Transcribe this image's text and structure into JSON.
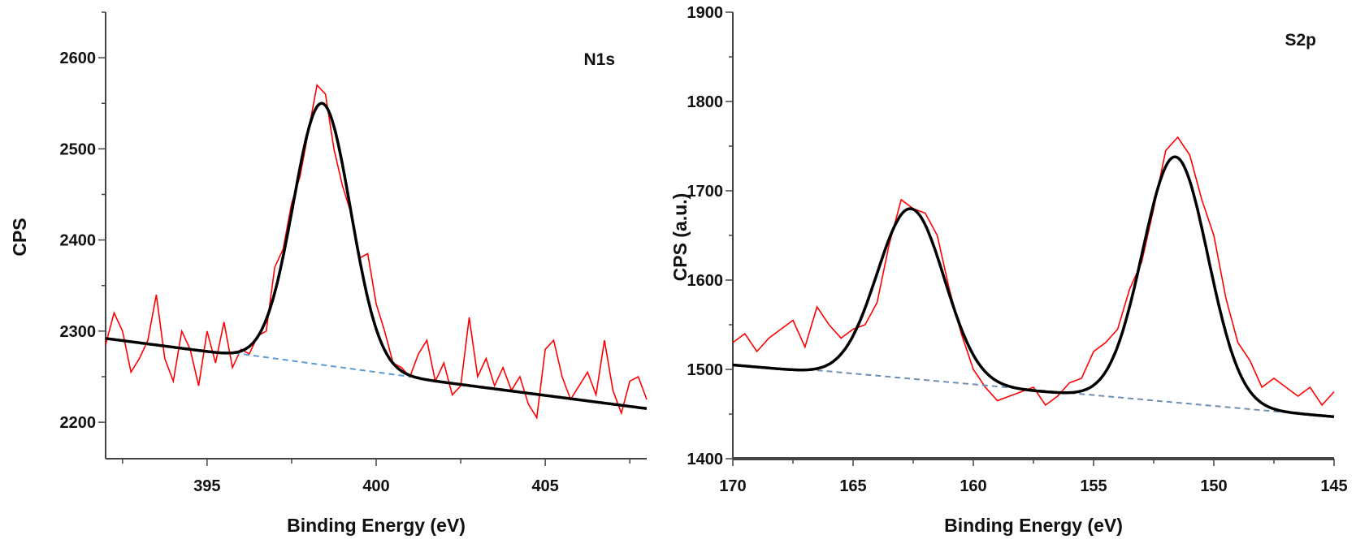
{
  "chart_data": [
    {
      "type": "line",
      "panel_label": "N1s",
      "xlabel": "Binding Energy (eV)",
      "ylabel": "CPS",
      "xlim": [
        392,
        408
      ],
      "ylim": [
        2160,
        2650
      ],
      "x_reversed": false,
      "xticks": [
        395,
        400,
        405
      ],
      "yticks": [
        2200,
        2300,
        2400,
        2500,
        2600
      ],
      "grid": false,
      "colors": {
        "raw": "#ff0000",
        "fit": "#000000",
        "background": "#5b9bd5"
      },
      "raw": {
        "x": [
          392,
          392.25,
          392.5,
          392.75,
          393,
          393.25,
          393.5,
          393.75,
          394,
          394.25,
          394.5,
          394.75,
          395,
          395.25,
          395.5,
          395.75,
          396,
          396.25,
          396.5,
          396.75,
          397,
          397.25,
          397.5,
          397.75,
          398,
          398.25,
          398.5,
          398.75,
          399,
          399.25,
          399.5,
          399.75,
          400,
          400.25,
          400.5,
          400.75,
          401,
          401.25,
          401.5,
          401.75,
          402,
          402.25,
          402.5,
          402.75,
          403,
          403.25,
          403.5,
          403.75,
          404,
          404.25,
          404.5,
          404.75,
          405,
          405.25,
          405.5,
          405.75,
          406,
          406.25,
          406.5,
          406.75,
          407,
          407.25,
          407.5,
          407.75,
          408
        ],
        "y": [
          2285,
          2320,
          2300,
          2255,
          2270,
          2290,
          2340,
          2270,
          2245,
          2300,
          2280,
          2240,
          2300,
          2265,
          2310,
          2260,
          2280,
          2275,
          2295,
          2300,
          2370,
          2390,
          2440,
          2470,
          2520,
          2570,
          2560,
          2500,
          2460,
          2430,
          2380,
          2385,
          2330,
          2300,
          2265,
          2260,
          2250,
          2275,
          2290,
          2245,
          2265,
          2230,
          2240,
          2315,
          2250,
          2270,
          2240,
          2260,
          2235,
          2250,
          2220,
          2205,
          2280,
          2290,
          2250,
          2225,
          2240,
          2255,
          2230,
          2290,
          2235,
          2210,
          2245,
          2250,
          2225
        ]
      },
      "fit": {
        "baseline": [
          [
            392,
            2292
          ],
          [
            408,
            2215
          ]
        ],
        "peaks": [
          {
            "center": 398.4,
            "peak_cps": 2550,
            "fwhm": 2.0
          }
        ]
      },
      "background": [
        [
          395.8,
          2276
        ],
        [
          401.0,
          2250
        ]
      ]
    },
    {
      "type": "line",
      "panel_label": "S2p",
      "xlabel": "Binding Energy (eV)",
      "ylabel": "CPS (a.u.)",
      "xlim": [
        170,
        145
      ],
      "ylim": [
        1400,
        1900
      ],
      "x_reversed": true,
      "xticks": [
        170,
        165,
        160,
        155,
        150,
        145
      ],
      "yticks": [
        1400,
        1500,
        1600,
        1700,
        1800,
        1900
      ],
      "grid": false,
      "colors": {
        "raw": "#ff0000",
        "fit": "#000000",
        "background": "#6f8fb0"
      },
      "raw": {
        "x": [
          170,
          169.5,
          169,
          168.5,
          168,
          167.5,
          167,
          166.5,
          166,
          165.5,
          165,
          164.5,
          164,
          163.5,
          163,
          162.5,
          162,
          161.5,
          161,
          160.5,
          160,
          159.5,
          159,
          158.5,
          158,
          157.5,
          157,
          156.5,
          156,
          155.5,
          155,
          154.5,
          154,
          153.5,
          153,
          152.5,
          152,
          151.5,
          151,
          150.5,
          150,
          149.5,
          149,
          148.5,
          148,
          147.5,
          147,
          146.5,
          146,
          145.5,
          145
        ],
        "y": [
          1530,
          1540,
          1520,
          1535,
          1545,
          1555,
          1525,
          1570,
          1550,
          1535,
          1545,
          1550,
          1575,
          1640,
          1690,
          1680,
          1675,
          1650,
          1590,
          1540,
          1500,
          1480,
          1465,
          1470,
          1475,
          1480,
          1460,
          1470,
          1485,
          1490,
          1520,
          1530,
          1545,
          1590,
          1620,
          1680,
          1745,
          1760,
          1740,
          1690,
          1650,
          1580,
          1530,
          1510,
          1480,
          1490,
          1480,
          1470,
          1480,
          1460,
          1475
        ]
      },
      "fit": {
        "baseline": [
          [
            170,
            1505
          ],
          [
            145,
            1447
          ]
        ],
        "peaks": [
          {
            "center": 162.6,
            "peak_cps": 1680,
            "fwhm": 3.3
          },
          {
            "center": 151.6,
            "peak_cps": 1738,
            "fwhm": 3.2
          }
        ]
      },
      "background": [
        [
          166.5,
          1499
        ],
        [
          145,
          1447
        ]
      ]
    }
  ]
}
